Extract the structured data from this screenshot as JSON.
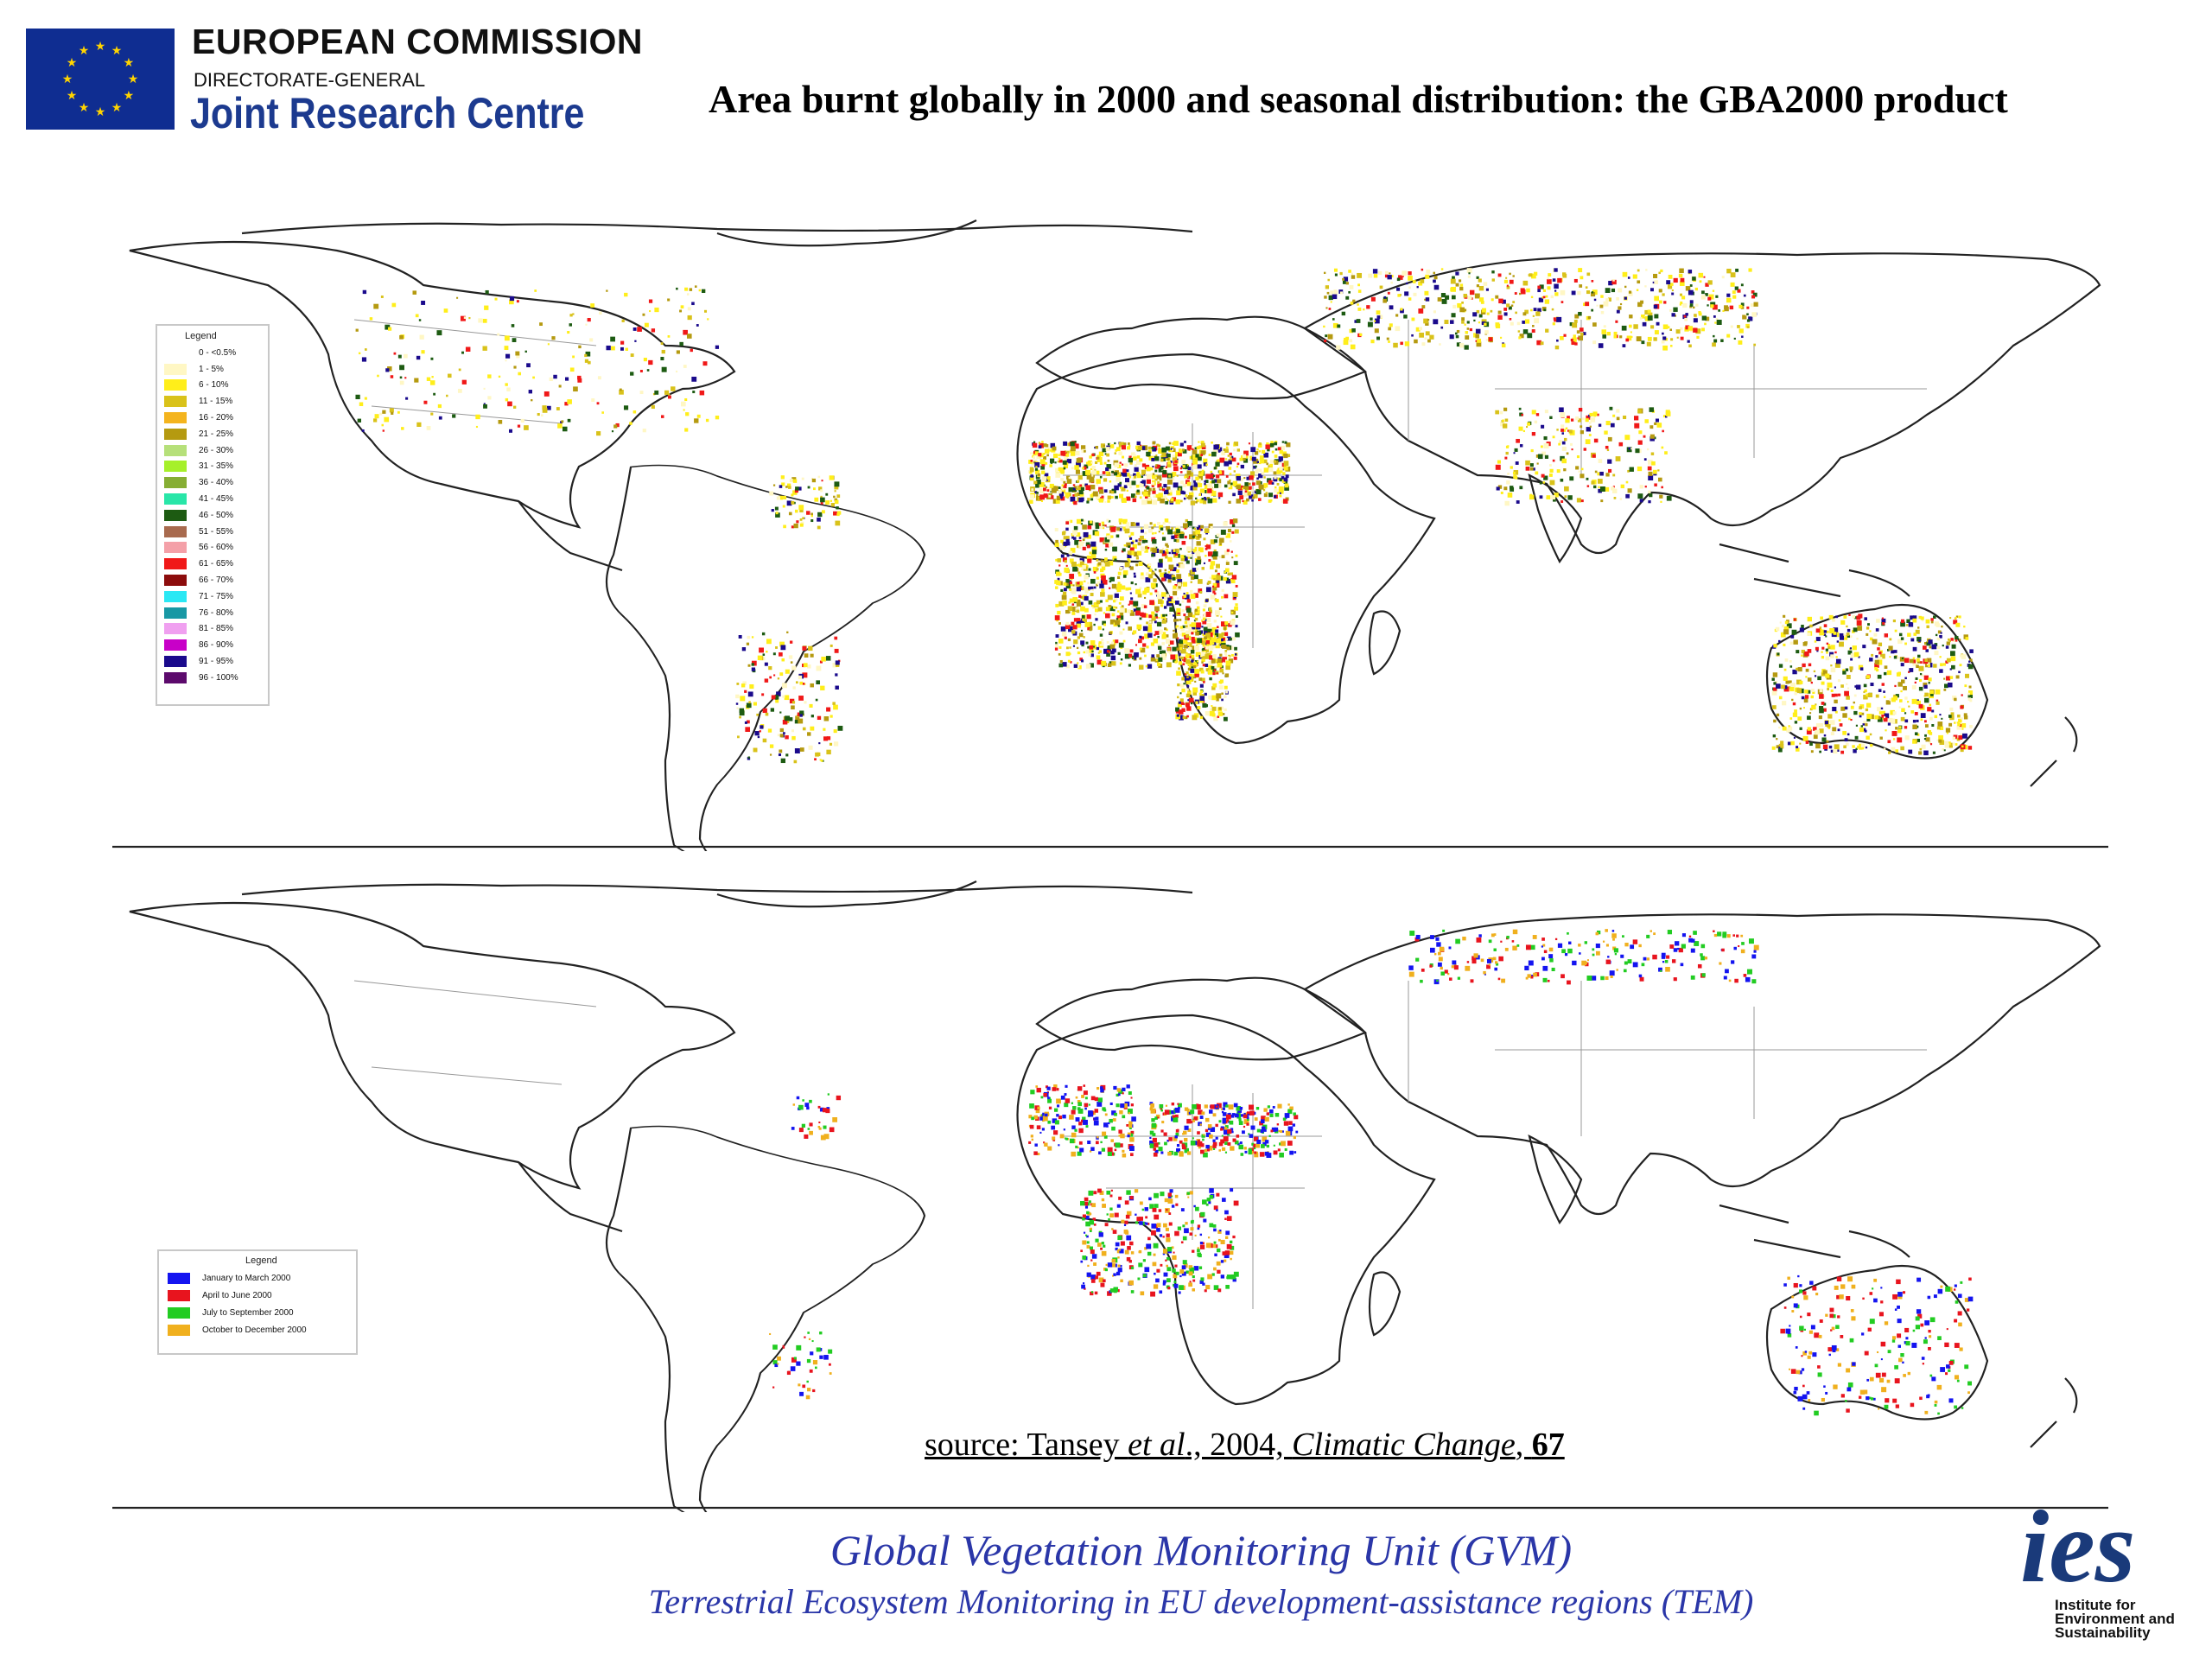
{
  "header": {
    "org_name": "EUROPEAN COMMISSION",
    "org_dg": "DIRECTORATE-GENERAL",
    "org_centre": "Joint Research Centre",
    "title": "Area burnt globally in 2000 and seasonal distribution: the GBA2000 product"
  },
  "colors": {
    "eu_blue": "#0f2d91",
    "eu_star": "#ffd400",
    "unit_text": "#2a36a8",
    "ies_logo": "#1a3a7a"
  },
  "map_top": {
    "legend_title": "Legend",
    "legend_items": [
      {
        "label": "0 - <0.5%",
        "color": "#ffffff"
      },
      {
        "label": "1 - 5%",
        "color": "#fff7c4"
      },
      {
        "label": "6 - 10%",
        "color": "#ffee1a"
      },
      {
        "label": "11 - 15%",
        "color": "#d9c21a"
      },
      {
        "label": "16 - 20%",
        "color": "#f4b41e"
      },
      {
        "label": "21 - 25%",
        "color": "#b59a10"
      },
      {
        "label": "26 - 30%",
        "color": "#b6e07a"
      },
      {
        "label": "31 - 35%",
        "color": "#a6f02a"
      },
      {
        "label": "36 - 40%",
        "color": "#86ae34"
      },
      {
        "label": "41 - 45%",
        "color": "#28e6a8"
      },
      {
        "label": "46 - 50%",
        "color": "#1d5b12"
      },
      {
        "label": "51 - 55%",
        "color": "#a86a4e"
      },
      {
        "label": "56 - 60%",
        "color": "#f4a0a8"
      },
      {
        "label": "61 - 65%",
        "color": "#f01818"
      },
      {
        "label": "66 - 70%",
        "color": "#8c0c0c"
      },
      {
        "label": "71 - 75%",
        "color": "#2ae8f4"
      },
      {
        "label": "76 - 80%",
        "color": "#1898a4"
      },
      {
        "label": "81 - 85%",
        "color": "#f0a0f0"
      },
      {
        "label": "86 - 90%",
        "color": "#c800c8"
      },
      {
        "label": "91 - 95%",
        "color": "#1a0a8c"
      },
      {
        "label": "96 - 100%",
        "color": "#5c0a6c"
      }
    ]
  },
  "map_bottom": {
    "legend_title": "Legend",
    "legend_items": [
      {
        "label": "January to March 2000",
        "color": "#1414f0"
      },
      {
        "label": "April to June 2000",
        "color": "#e8141e"
      },
      {
        "label": "July to September 2000",
        "color": "#22cc22"
      },
      {
        "label": "October to December 2000",
        "color": "#f0b01e"
      }
    ]
  },
  "source": {
    "prefix": "source: Tansey ",
    "etal": "et al",
    "year": "., 2004, ",
    "journal": "Climatic Change",
    "comma": ", ",
    "volume": "67"
  },
  "footer": {
    "unit_name": "Global Vegetation Monitoring Unit (GVM)",
    "unit_sub": "Terrestrial Ecosystem Monitoring in EU development-assistance regions (TEM)",
    "ies_letters": "ies",
    "ies_caption_1": "Institute for",
    "ies_caption_2": "Environment and",
    "ies_caption_3": "Sustainability"
  }
}
